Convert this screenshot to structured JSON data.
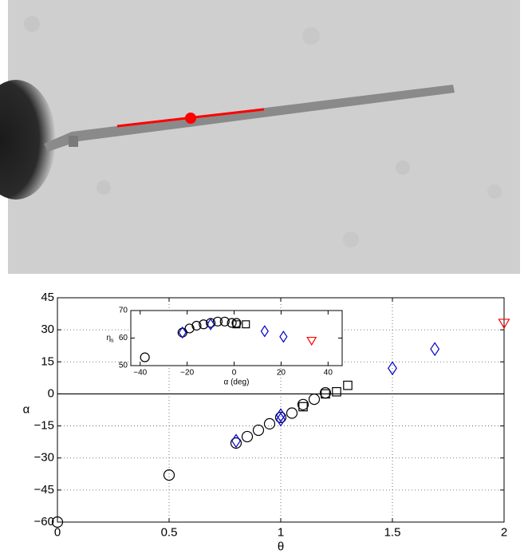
{
  "chart_data": [
    {
      "type": "scatter",
      "xlabel": "θ",
      "ylabel": "α",
      "xlim": [
        0,
        2
      ],
      "ylim": [
        -60,
        45
      ],
      "xticks": [
        0,
        0.5,
        1,
        1.5,
        2
      ],
      "yticks": [
        {
          "value": -60,
          "label": "−60"
        },
        {
          "value": -45,
          "label": "−45"
        },
        {
          "value": -30,
          "label": "−30"
        },
        {
          "value": -15,
          "label": "−15"
        },
        0,
        15,
        30,
        45
      ],
      "grid": true,
      "zero_line": true,
      "series": [
        {
          "marker": "circle",
          "color": "#000000",
          "x": [
            0,
            0.5,
            0.8,
            0.85,
            0.9,
            0.95,
            1.0,
            1.05,
            1.1,
            1.15,
            1.2
          ],
          "values": [
            -60,
            -38,
            -23,
            -20,
            -17,
            -14,
            -11,
            -9,
            -5,
            -2.5,
            0.5
          ]
        },
        {
          "marker": "square",
          "color": "#000000",
          "x": [
            1.1,
            1.2,
            1.25,
            1.3
          ],
          "values": [
            -6,
            0,
            1,
            4
          ]
        },
        {
          "marker": "diamond",
          "color": "#0000cc",
          "x": [
            0.8,
            1.0,
            1.0,
            1.5,
            1.69
          ],
          "values": [
            -22,
            -10,
            -12,
            12,
            21
          ]
        },
        {
          "marker": "triangle-down",
          "color": "#ff0000",
          "x": [
            2
          ],
          "values": [
            33
          ]
        }
      ]
    },
    {
      "type": "scatter",
      "xlabel": "α (deg)",
      "ylabel": "η",
      "ylabel_subscript": "s",
      "xlim": [
        -44,
        46
      ],
      "ylim": [
        50,
        70
      ],
      "xticks": [
        {
          "value": -40,
          "label": "−40"
        },
        {
          "value": -20,
          "label": "−20"
        },
        0,
        20,
        40
      ],
      "yticks": [
        50,
        60,
        70
      ],
      "grid": false,
      "zero_line": false,
      "series": [
        {
          "marker": "circle",
          "color": "#000000",
          "x": [
            -38,
            -22,
            -19,
            -16,
            -13,
            -10,
            -7,
            -4,
            -1,
            1
          ],
          "values": [
            53,
            62,
            63.5,
            64.5,
            65,
            65.5,
            66,
            66,
            65.5,
            65.5
          ]
        },
        {
          "marker": "diamond",
          "color": "#0000cc",
          "x": [
            -22,
            -10,
            13,
            21
          ],
          "values": [
            62,
            65,
            62.5,
            60.5
          ]
        },
        {
          "marker": "square",
          "color": "#000000",
          "x": [
            1,
            5
          ],
          "values": [
            65,
            65
          ]
        },
        {
          "marker": "triangle-down",
          "color": "#ff0000",
          "x": [
            33
          ],
          "values": [
            59
          ]
        }
      ]
    }
  ]
}
